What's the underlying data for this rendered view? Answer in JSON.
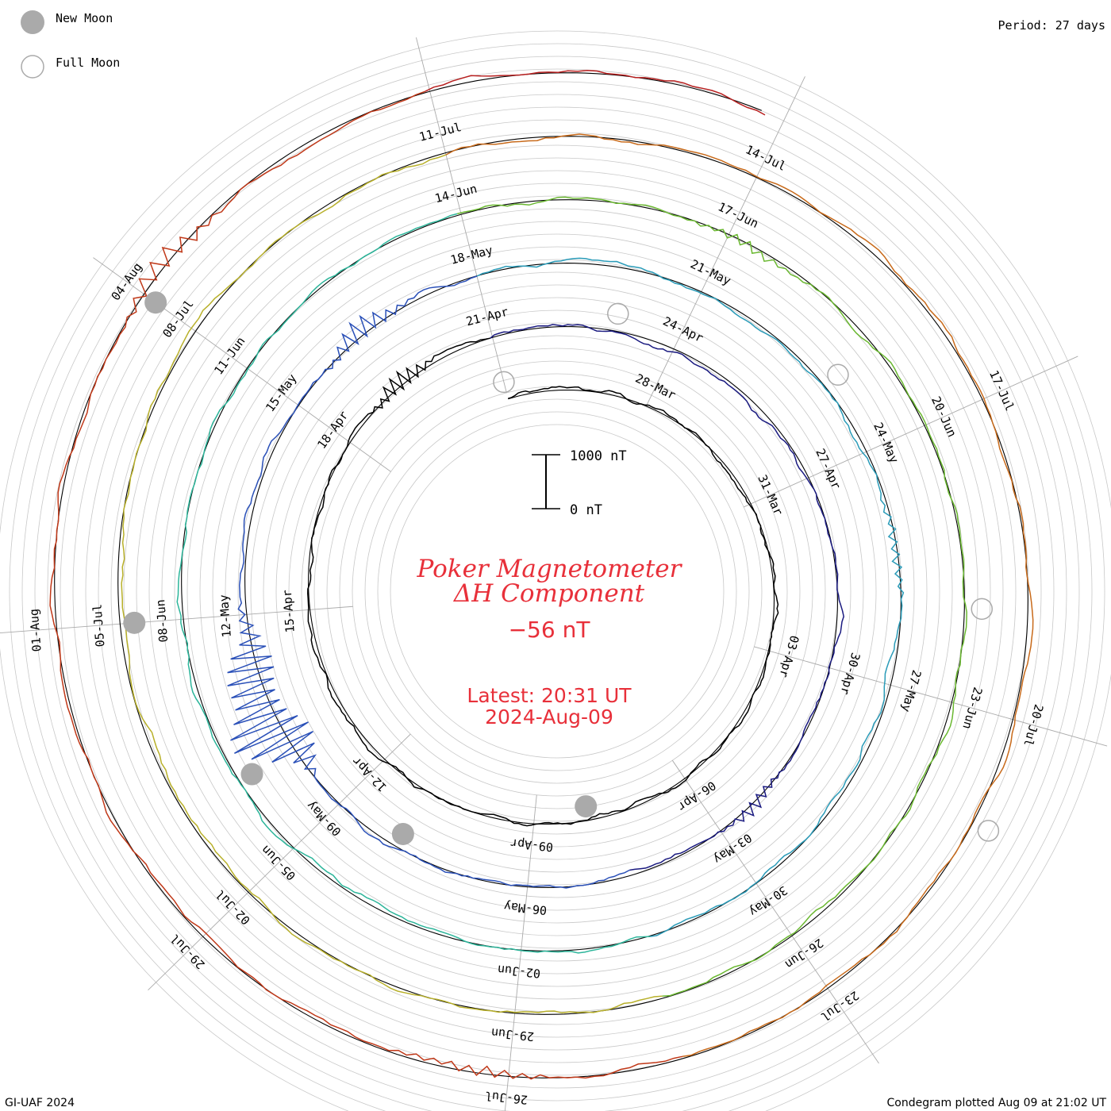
{
  "legend": {
    "new_moon": "New Moon",
    "full_moon": "Full Moon"
  },
  "period": "Period: 27 days",
  "footer": {
    "left": "GI-UAF 2024",
    "right": "Condegram plotted Aug 09 at 21:02 UT"
  },
  "center": {
    "title_line1": "Poker Magnetometer",
    "title_line2": "ΔH Component",
    "value": "−56 nT",
    "latest": "Latest: 20:31 UT",
    "date": "2024-Aug-09"
  },
  "scale": {
    "top": "1000 nT",
    "bottom": "0 nT"
  },
  "colors": {
    "title": "#e8303a",
    "grid": "#bbbbbb",
    "moon": "#aaaaaa"
  },
  "chart_data": {
    "type": "line",
    "projection": "spiral condegram",
    "period_days": 27,
    "start_date": "2024-03-25",
    "end_date": "2024-08-09",
    "units": "nT",
    "date_labels": [
      "28-Mar",
      "31-Mar",
      "03-Apr",
      "06-Apr",
      "09-Apr",
      "12-Apr",
      "15-Apr",
      "18-Apr",
      "21-Apr",
      "24-Apr",
      "27-Apr",
      "30-Apr",
      "03-May",
      "06-May",
      "09-May",
      "12-May",
      "15-May",
      "18-May",
      "21-May",
      "24-May",
      "27-May",
      "30-May",
      "02-Jun",
      "05-Jun",
      "08-Jun",
      "11-Jun",
      "14-Jun",
      "17-Jun",
      "20-Jun",
      "23-Jun",
      "26-Jun",
      "29-Jun",
      "02-Jul",
      "05-Jul",
      "08-Jul",
      "11-Jul",
      "14-Jul",
      "17-Jul",
      "20-Jul",
      "23-Jul",
      "26-Jul",
      "29-Jul",
      "01-Aug",
      "04-Aug"
    ],
    "new_moons": [
      "2024-04-08",
      "2024-05-08",
      "2024-06-06",
      "2024-07-05",
      "2024-08-04"
    ],
    "full_moons": [
      "2024-03-25",
      "2024-04-23",
      "2024-05-23",
      "2024-06-22",
      "2024-07-21"
    ],
    "disturbances": [
      {
        "date": "2024-04-19",
        "amplitude": 250
      },
      {
        "date": "2024-05-02",
        "amplitude": 180
      },
      {
        "date": "2024-05-10",
        "amplitude": 1100
      },
      {
        "date": "2024-05-11",
        "amplitude": 700
      },
      {
        "date": "2024-05-16",
        "amplitude": 300
      },
      {
        "date": "2024-05-25",
        "amplitude": 150
      },
      {
        "date": "2024-06-17",
        "amplitude": 120
      },
      {
        "date": "2024-07-26",
        "amplitude": 150
      },
      {
        "date": "2024-08-04",
        "amplitude": 250
      }
    ],
    "scale_bar": {
      "min": 0,
      "max": 1000
    }
  }
}
